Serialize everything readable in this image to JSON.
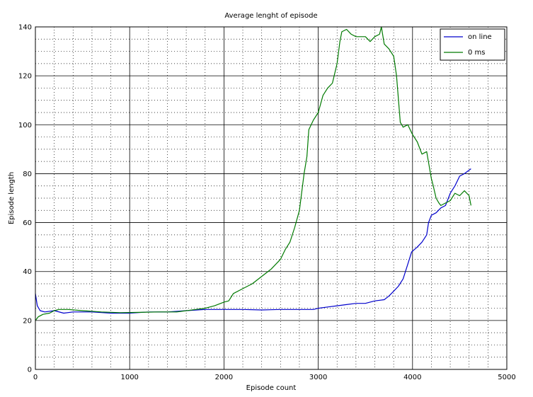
{
  "chart_data": {
    "type": "line",
    "title": "Average lenght of episode",
    "xlabel": "Episode count",
    "ylabel": "Episode length",
    "xlim": [
      0,
      5000
    ],
    "ylim": [
      0,
      140
    ],
    "xticks": [
      0,
      1000,
      2000,
      3000,
      4000,
      5000
    ],
    "yticks": [
      0,
      20,
      40,
      60,
      80,
      100,
      120,
      140
    ],
    "grid": true,
    "minor_grid": true,
    "legend_position": "top-right",
    "series": [
      {
        "name": "on line",
        "color": "#0000cc",
        "points": [
          [
            0,
            31
          ],
          [
            20,
            26
          ],
          [
            50,
            24
          ],
          [
            100,
            23.5
          ],
          [
            200,
            24
          ],
          [
            300,
            23
          ],
          [
            400,
            23.5
          ],
          [
            600,
            23.5
          ],
          [
            800,
            23
          ],
          [
            1000,
            23
          ],
          [
            1200,
            23.5
          ],
          [
            1400,
            23.5
          ],
          [
            1600,
            24
          ],
          [
            1800,
            24.5
          ],
          [
            2000,
            24.5
          ],
          [
            2200,
            24.5
          ],
          [
            2400,
            24.3
          ],
          [
            2600,
            24.5
          ],
          [
            2800,
            24.5
          ],
          [
            2950,
            24.5
          ],
          [
            3000,
            25
          ],
          [
            3100,
            25.5
          ],
          [
            3200,
            26
          ],
          [
            3300,
            26.5
          ],
          [
            3400,
            27
          ],
          [
            3500,
            27
          ],
          [
            3600,
            28
          ],
          [
            3700,
            28.5
          ],
          [
            3750,
            30
          ],
          [
            3800,
            32
          ],
          [
            3850,
            34
          ],
          [
            3900,
            37
          ],
          [
            3950,
            43
          ],
          [
            3990,
            48
          ],
          [
            4050,
            50
          ],
          [
            4100,
            52
          ],
          [
            4150,
            55
          ],
          [
            4170,
            60
          ],
          [
            4200,
            63
          ],
          [
            4250,
            64
          ],
          [
            4300,
            66
          ],
          [
            4350,
            67
          ],
          [
            4400,
            72
          ],
          [
            4450,
            75
          ],
          [
            4500,
            79
          ],
          [
            4550,
            80
          ],
          [
            4620,
            82
          ]
        ]
      },
      {
        "name": "0 ms",
        "color": "#007a00",
        "points": [
          [
            0,
            20
          ],
          [
            30,
            21.5
          ],
          [
            80,
            22.5
          ],
          [
            150,
            23
          ],
          [
            200,
            24
          ],
          [
            250,
            24.5
          ],
          [
            350,
            24.5
          ],
          [
            500,
            24
          ],
          [
            700,
            23.5
          ],
          [
            900,
            23.2
          ],
          [
            1100,
            23.3
          ],
          [
            1300,
            23.5
          ],
          [
            1500,
            23.5
          ],
          [
            1700,
            24.5
          ],
          [
            1800,
            25
          ],
          [
            1900,
            26
          ],
          [
            2000,
            27.5
          ],
          [
            2050,
            28
          ],
          [
            2100,
            31
          ],
          [
            2200,
            33
          ],
          [
            2300,
            35
          ],
          [
            2400,
            38
          ],
          [
            2500,
            41
          ],
          [
            2600,
            45
          ],
          [
            2650,
            49
          ],
          [
            2700,
            52
          ],
          [
            2750,
            58
          ],
          [
            2800,
            65
          ],
          [
            2850,
            80
          ],
          [
            2880,
            87
          ],
          [
            2900,
            98
          ],
          [
            2950,
            102
          ],
          [
            3000,
            105
          ],
          [
            3050,
            112
          ],
          [
            3100,
            115
          ],
          [
            3150,
            117
          ],
          [
            3200,
            125
          ],
          [
            3230,
            134
          ],
          [
            3250,
            138
          ],
          [
            3300,
            139
          ],
          [
            3350,
            137
          ],
          [
            3400,
            136
          ],
          [
            3500,
            136
          ],
          [
            3550,
            134
          ],
          [
            3600,
            136
          ],
          [
            3650,
            137
          ],
          [
            3670,
            140
          ],
          [
            3700,
            133
          ],
          [
            3750,
            131
          ],
          [
            3800,
            128
          ],
          [
            3830,
            120
          ],
          [
            3870,
            101
          ],
          [
            3900,
            99
          ],
          [
            3950,
            100
          ],
          [
            4000,
            96
          ],
          [
            4050,
            93
          ],
          [
            4100,
            88
          ],
          [
            4150,
            89
          ],
          [
            4200,
            78
          ],
          [
            4220,
            75
          ],
          [
            4250,
            70
          ],
          [
            4280,
            68
          ],
          [
            4300,
            67
          ],
          [
            4350,
            68
          ],
          [
            4400,
            69
          ],
          [
            4450,
            72
          ],
          [
            4500,
            71
          ],
          [
            4550,
            73
          ],
          [
            4600,
            71
          ],
          [
            4620,
            67
          ]
        ]
      }
    ]
  }
}
